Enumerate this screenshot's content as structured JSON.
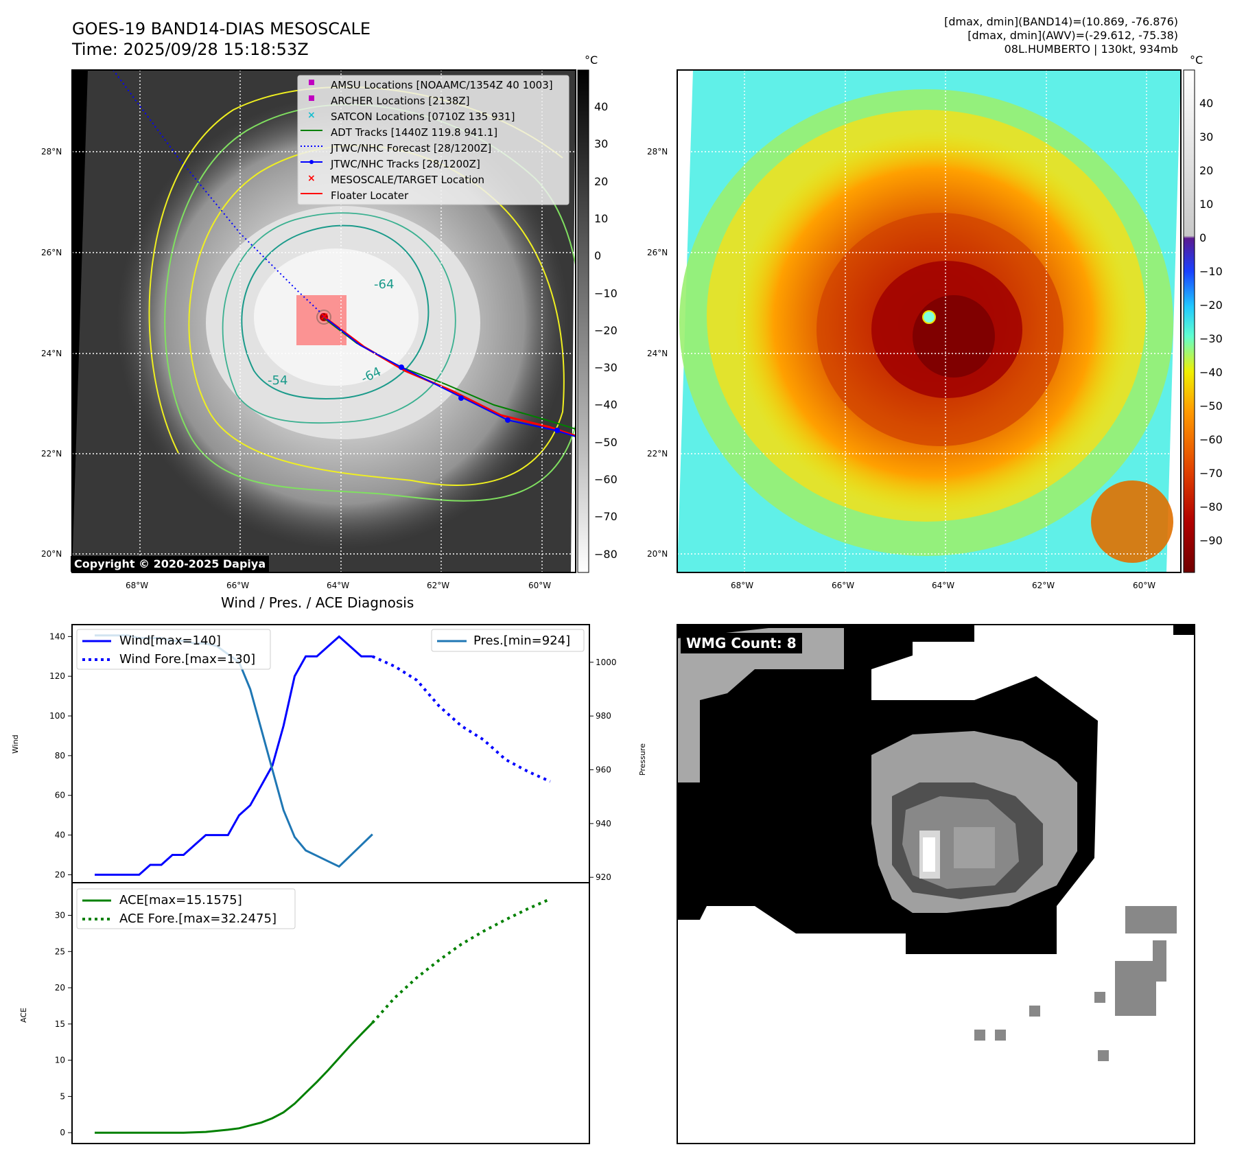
{
  "header": {
    "title_line1": "GOES-19 BAND14-DIAS MESOSCALE",
    "title_line2": "Time: 2025/09/28 15:18:53Z",
    "info_line1": "[dmax, dmin](BAND14)=(10.869, -76.876)",
    "info_line2": "[dmax, dmin](AWV)=(-29.612, -75.38)",
    "info_line3": "08L.HUMBERTO | 130kt, 934mb"
  },
  "map": {
    "lon_labels": [
      "68°W",
      "66°W",
      "64°W",
      "62°W",
      "60°W"
    ],
    "lat_labels": [
      "28°N",
      "26°N",
      "24°N",
      "22°N",
      "20°N"
    ],
    "contour_labels": [
      "-64",
      "-54",
      "-64"
    ],
    "copyright": "Copyright © 2020-2025 Dapiya",
    "legend": [
      {
        "label": "AMSU Locations [NOAAMC/1354Z 40 1003]",
        "marker": "square",
        "color": "#c000c0"
      },
      {
        "label": "ARCHER Locations [2138Z]",
        "marker": "square",
        "color": "#c000c0"
      },
      {
        "label": "SATCON Locations [0710Z 135 931]",
        "marker": "x",
        "color": "#17becf"
      },
      {
        "label": "ADT Tracks [1440Z 119.8 941.1]",
        "marker": "line",
        "color": "#008000"
      },
      {
        "label": "JTWC/NHC Forecast [28/1200Z]",
        "marker": "dotted",
        "color": "#0000ff"
      },
      {
        "label": "JTWC/NHC Tracks [28/1200Z]",
        "marker": "line-dot",
        "color": "#0000ff"
      },
      {
        "label": "MESOSCALE/TARGET Location",
        "marker": "x",
        "color": "#ff0000"
      },
      {
        "label": "Floater Locater",
        "marker": "line",
        "color": "#ff0000"
      }
    ],
    "cbar_left": {
      "unit": "°C",
      "ticks": [
        "40",
        "30",
        "20",
        "10",
        "0",
        "−10",
        "−20",
        "−30",
        "−40",
        "−50",
        "−60",
        "−70",
        "−80"
      ]
    },
    "cbar_right": {
      "unit": "°C",
      "ticks": [
        "40",
        "30",
        "20",
        "10",
        "0",
        "−10",
        "−20",
        "−30",
        "−40",
        "−50",
        "−60",
        "−70",
        "−80",
        "−90"
      ]
    }
  },
  "diagnosis": {
    "title": "Wind / Pres. / ACE Diagnosis",
    "wind_ylabel": "Wind",
    "pres_ylabel": "Pressure",
    "ace_ylabel": "ACE",
    "wmg_label": "WMG Count: 8"
  },
  "chart_data": [
    {
      "type": "line",
      "title": "Wind / Pres. / ACE Diagnosis",
      "ylabel": "Wind",
      "ylim": [
        16,
        146
      ],
      "yticks": [
        20,
        40,
        60,
        80,
        100,
        120,
        140
      ],
      "xlim": [
        0,
        42
      ],
      "series": [
        {
          "name": "Wind[max=140]",
          "style": "solid",
          "color": "#0000ff",
          "x": [
            0,
            1,
            2,
            3,
            4,
            5,
            6,
            7,
            8,
            9,
            10,
            11,
            12,
            13,
            14,
            15,
            16,
            17,
            18,
            19,
            20,
            21,
            22,
            23,
            24,
            25
          ],
          "y": [
            20,
            20,
            20,
            20,
            20,
            25,
            25,
            30,
            30,
            35,
            40,
            40,
            40,
            50,
            55,
            65,
            75,
            95,
            120,
            130,
            130,
            135,
            140,
            135,
            130,
            130
          ]
        },
        {
          "name": "Wind Fore.[max=130]",
          "style": "dotted",
          "color": "#0000ff",
          "x": [
            25,
            27,
            29,
            31,
            33,
            35,
            37,
            39,
            41
          ],
          "y": [
            130,
            125,
            118,
            105,
            95,
            88,
            78,
            72,
            67
          ]
        }
      ]
    },
    {
      "type": "line",
      "ylabel": "Pressure",
      "ylim": [
        918,
        1014
      ],
      "yticks": [
        920,
        940,
        960,
        980,
        1000
      ],
      "xlim": [
        0,
        42
      ],
      "series": [
        {
          "name": "Pres.[min=924]",
          "style": "solid",
          "color": "#1f77b4",
          "x": [
            0,
            1,
            2,
            3,
            4,
            5,
            6,
            7,
            8,
            9,
            10,
            11,
            12,
            13,
            14,
            15,
            16,
            17,
            18,
            19,
            20,
            21,
            22,
            23,
            24,
            25
          ],
          "y": [
            1010,
            1010,
            1010,
            1010,
            1009,
            1009,
            1009,
            1008,
            1008,
            1007,
            1007,
            1006,
            1003,
            1000,
            990,
            975,
            960,
            945,
            935,
            930,
            928,
            926,
            924,
            928,
            932,
            936
          ]
        }
      ]
    },
    {
      "type": "line",
      "ylabel": "ACE",
      "ylim": [
        -1.5,
        34.5
      ],
      "yticks": [
        0,
        5,
        10,
        15,
        20,
        25,
        30
      ],
      "xlim": [
        0,
        42
      ],
      "series": [
        {
          "name": "ACE[max=15.1575]",
          "style": "solid",
          "color": "#008000",
          "x": [
            0,
            2,
            4,
            6,
            8,
            10,
            12,
            13,
            14,
            15,
            16,
            17,
            18,
            19,
            20,
            21,
            22,
            23,
            24,
            25
          ],
          "y": [
            0,
            0,
            0,
            0,
            0,
            0.1,
            0.4,
            0.6,
            1,
            1.4,
            2,
            2.8,
            4,
            5.5,
            7,
            8.6,
            10.3,
            12,
            13.6,
            15.16
          ]
        },
        {
          "name": "ACE Fore.[max=32.2475]",
          "style": "dotted",
          "color": "#008000",
          "x": [
            25,
            27,
            29,
            31,
            33,
            35,
            37,
            39,
            41
          ],
          "y": [
            15.16,
            18.6,
            21.4,
            23.8,
            26,
            27.8,
            29.4,
            30.9,
            32.25
          ]
        }
      ]
    }
  ]
}
